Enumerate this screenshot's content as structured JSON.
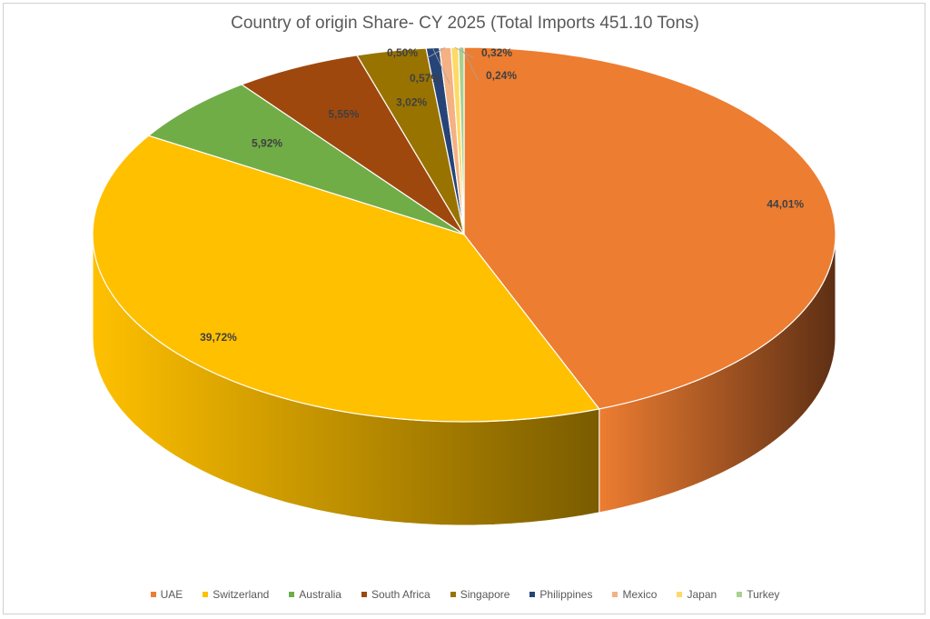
{
  "chart_data": {
    "type": "pie",
    "title": "Country of origin Share- CY 2025 (Total Imports 451.10 Tons)",
    "categories": [
      "UAE",
      "Switzerland",
      "Australia",
      "South Africa",
      "Singapore",
      "Philippines",
      "Mexico",
      "Japan",
      "Turkey"
    ],
    "values": [
      44.01,
      39.72,
      5.92,
      5.55,
      3.02,
      0.57,
      0.5,
      0.32,
      0.24
    ],
    "labels": [
      "44,01%",
      "39,72%",
      "5,92%",
      "5,55%",
      "3,02%",
      "0,57%",
      "0,50%",
      "0,32%",
      "0,24%"
    ],
    "colors": [
      "#ED7D31",
      "#FFC000",
      "#70AD47",
      "#9E480E",
      "#997300",
      "#264478",
      "#F4B183",
      "#FFD966",
      "#A9D18E"
    ],
    "side_colors": [
      "#5E2F14",
      "#7A5C00",
      "#3F6428",
      "#5A2A08",
      "#5A4400",
      "#1A1A1A",
      "#8A5A30",
      "#8A7020",
      "#5A7A40"
    ],
    "legend_position": "bottom",
    "style": "3d-pie"
  }
}
